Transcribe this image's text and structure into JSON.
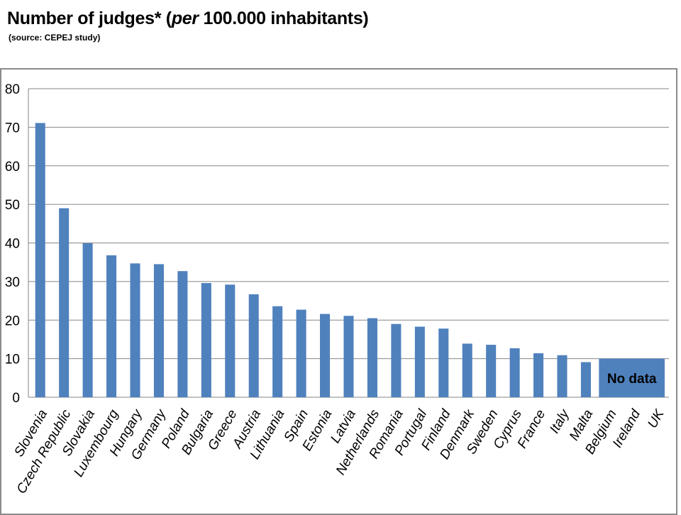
{
  "header": {
    "title_part1": "Number of judges* (",
    "title_italic": "per",
    "title_part2": " 100.000 inhabitants)",
    "subtitle": "(source: CEPEJ study)"
  },
  "chart_data": {
    "type": "bar",
    "title": "Number of judges* (per 100.000 inhabitants)",
    "subtitle": "(source: CEPEJ study)",
    "categories": [
      "Slovenia",
      "Czech Republic",
      "Slovakia",
      "Luxembourg",
      "Hungary",
      "Germany",
      "Poland",
      "Bulgaria",
      "Greece",
      "Austria",
      "Lithuania",
      "Spain",
      "Estonia",
      "Latvia",
      "Netherlands",
      "Romania",
      "Portugal",
      "Finland",
      "Denmark",
      "Sweden",
      "Cyprus",
      "France",
      "Italy",
      "Malta",
      "Belgium",
      "Ireland",
      "UK"
    ],
    "values": [
      71.1,
      49.0,
      39.9,
      36.8,
      34.7,
      34.5,
      32.7,
      29.6,
      29.2,
      26.7,
      23.6,
      22.7,
      21.6,
      21.1,
      20.5,
      19.0,
      18.3,
      17.8,
      13.9,
      13.6,
      12.7,
      11.4,
      10.9,
      9.1,
      null,
      null,
      null
    ],
    "ylim": [
      0,
      80
    ],
    "yticks": [
      0,
      10,
      20,
      30,
      40,
      50,
      60,
      70,
      80
    ],
    "grid": true,
    "legend": "none",
    "bar_color": "#4f81bd",
    "annotation": {
      "text": "No data",
      "categories": [
        "Belgium",
        "Ireland",
        "UK"
      ],
      "value": 10
    }
  }
}
